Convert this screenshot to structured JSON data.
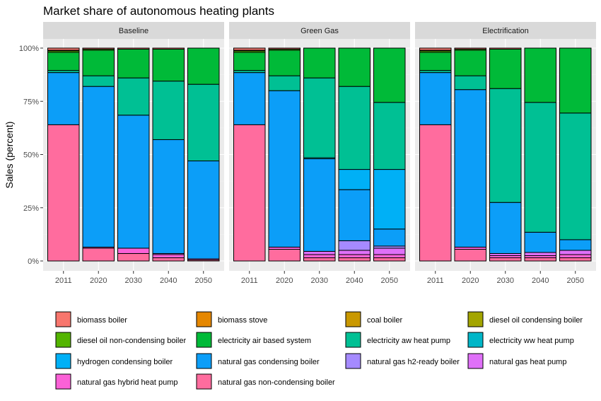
{
  "chart_data": {
    "type": "bar",
    "stacked": true,
    "title": "Market share of autonomous heating plants",
    "xlabel": "",
    "ylabel": "Sales (percent)",
    "ylim": [
      0,
      100
    ],
    "y_ticks": [
      "0%",
      "25%",
      "50%",
      "75%",
      "100%"
    ],
    "y_tick_values": [
      0,
      25,
      50,
      75,
      100
    ],
    "grid": true,
    "legend_position": "bottom",
    "categories": [
      "2011",
      "2020",
      "2030",
      "2040",
      "2050"
    ],
    "series": [
      {
        "name": "biomass boiler",
        "color": "#F8766D"
      },
      {
        "name": "biomass stove",
        "color": "#E58700"
      },
      {
        "name": "coal boiler",
        "color": "#C99800"
      },
      {
        "name": "diesel oil condensing boiler",
        "color": "#A3A500"
      },
      {
        "name": "diesel oil non-condensing boiler",
        "color": "#53B400"
      },
      {
        "name": "electricity air based system",
        "color": "#00BA38"
      },
      {
        "name": "electricity aw heat pump",
        "color": "#00C094"
      },
      {
        "name": "electricity ww heat pump",
        "color": "#00B6C8"
      },
      {
        "name": "hydrogen condensing boiler",
        "color": "#00B0F6"
      },
      {
        "name": "natural gas condensing boiler",
        "color": "#0C9EF8"
      },
      {
        "name": "natural gas h2-ready boiler",
        "color": "#A58AFF"
      },
      {
        "name": "natural gas heat pump",
        "color": "#DF70F8"
      },
      {
        "name": "natural gas hybrid heat pump",
        "color": "#FB61D7"
      },
      {
        "name": "natural gas non-condensing boiler",
        "color": "#FF6C9E"
      }
    ],
    "panels": [
      {
        "name": "Baseline",
        "values": {
          "2011": {
            "natural gas non-condensing boiler": 64,
            "natural gas condensing boiler": 24.5,
            "electricity aw heat pump": 1,
            "electricity air based system": 8.5,
            "diesel oil non-condensing boiler": 0.7,
            "diesel oil condensing boiler": 0.3,
            "biomass boiler": 1
          },
          "2020": {
            "natural gas non-condensing boiler": 6,
            "natural gas hybrid heat pump": 0.5,
            "natural gas condensing boiler": 75.5,
            "electricity aw heat pump": 5,
            "electricity air based system": 12,
            "diesel oil non-condensing boiler": 0.5,
            "biomass boiler": 0.5
          },
          "2030": {
            "natural gas non-condensing boiler": 3.5,
            "natural gas hybrid heat pump": 2.5,
            "natural gas condensing boiler": 62.5,
            "electricity aw heat pump": 17.5,
            "electricity air based system": 13.5,
            "biomass boiler": 0.5
          },
          "2040": {
            "natural gas non-condensing boiler": 1.5,
            "natural gas hybrid heat pump": 1.5,
            "natural gas heat pump": 0.5,
            "natural gas condensing boiler": 53.5,
            "electricity aw heat pump": 27.5,
            "electricity air based system": 15,
            "biomass boiler": 0.5
          },
          "2050": {
            "natural gas non-condensing boiler": 0.5,
            "natural gas hybrid heat pump": 0.5,
            "natural gas condensing boiler": 46,
            "electricity aw heat pump": 36,
            "electricity air based system": 17
          }
        }
      },
      {
        "name": "Green Gas",
        "values": {
          "2011": {
            "natural gas non-condensing boiler": 64,
            "natural gas condensing boiler": 24.5,
            "electricity aw heat pump": 1,
            "electricity air based system": 8.5,
            "diesel oil non-condensing boiler": 0.7,
            "diesel oil condensing boiler": 0.3,
            "biomass boiler": 1
          },
          "2020": {
            "natural gas non-condensing boiler": 5.5,
            "natural gas hybrid heat pump": 1,
            "natural gas condensing boiler": 73.5,
            "electricity aw heat pump": 7,
            "electricity air based system": 12,
            "diesel oil non-condensing boiler": 0.5,
            "biomass boiler": 0.5
          },
          "2030": {
            "natural gas non-condensing boiler": 1.5,
            "natural gas hybrid heat pump": 1.5,
            "natural gas heat pump": 1.5,
            "natural gas condensing boiler": 43.5,
            "electricity ww heat pump": 0.5,
            "electricity aw heat pump": 37.5,
            "electricity air based system": 14
          },
          "2040": {
            "natural gas non-condensing boiler": 1.5,
            "natural gas hybrid heat pump": 1.5,
            "natural gas heat pump": 2,
            "natural gas h2-ready boiler": 4.5,
            "natural gas condensing boiler": 24,
            "hydrogen condensing boiler": 9.5,
            "electricity aw heat pump": 39,
            "electricity air based system": 18
          },
          "2050": {
            "natural gas non-condensing boiler": 1.5,
            "natural gas hybrid heat pump": 1.5,
            "natural gas heat pump": 3,
            "natural gas h2-ready boiler": 1,
            "natural gas condensing boiler": 8,
            "hydrogen condensing boiler": 28,
            "electricity aw heat pump": 31.5,
            "electricity air based system": 25.5
          }
        }
      },
      {
        "name": "Electrification",
        "values": {
          "2011": {
            "natural gas non-condensing boiler": 64,
            "natural gas condensing boiler": 24.5,
            "electricity aw heat pump": 1,
            "electricity air based system": 8.5,
            "diesel oil non-condensing boiler": 0.7,
            "diesel oil condensing boiler": 0.3,
            "biomass boiler": 1
          },
          "2020": {
            "natural gas non-condensing boiler": 5.5,
            "natural gas hybrid heat pump": 1,
            "natural gas condensing boiler": 74,
            "electricity aw heat pump": 6.5,
            "electricity air based system": 12,
            "diesel oil non-condensing boiler": 0.5,
            "biomass boiler": 0.5
          },
          "2030": {
            "natural gas non-condensing boiler": 1.5,
            "natural gas hybrid heat pump": 1,
            "natural gas heat pump": 1,
            "natural gas condensing boiler": 24,
            "electricity aw heat pump": 53.5,
            "electricity air based system": 18.5,
            "biomass boiler": 0.5
          },
          "2040": {
            "natural gas non-condensing boiler": 1.5,
            "natural gas hybrid heat pump": 1,
            "natural gas heat pump": 1.5,
            "natural gas condensing boiler": 9.5,
            "electricity aw heat pump": 61,
            "electricity air based system": 25.5
          },
          "2050": {
            "natural gas non-condensing boiler": 1.5,
            "natural gas hybrid heat pump": 1.5,
            "natural gas heat pump": 2,
            "natural gas condensing boiler": 5,
            "electricity aw heat pump": 59.5,
            "electricity air based system": 30.5
          }
        }
      }
    ]
  }
}
